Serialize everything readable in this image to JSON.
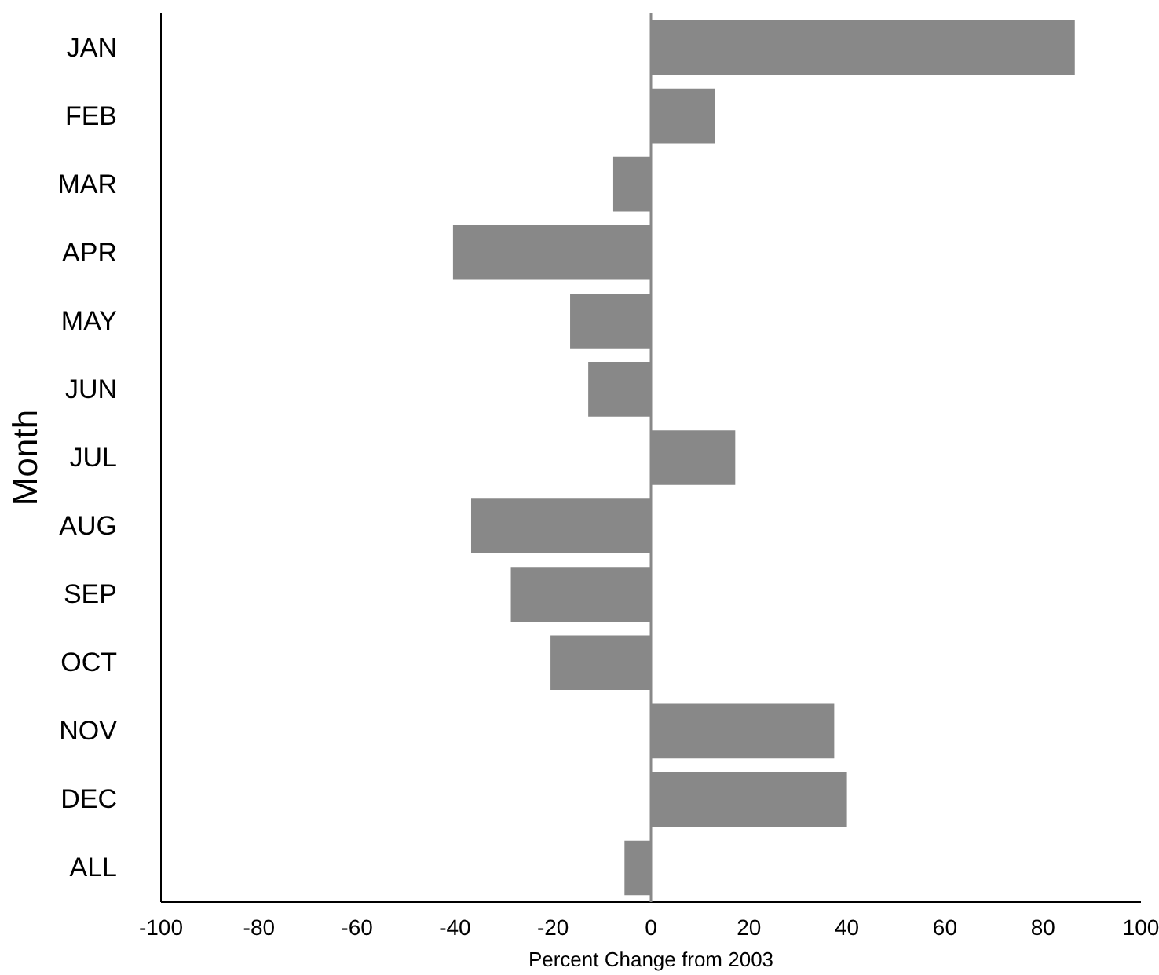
{
  "chart_data": {
    "type": "bar",
    "orientation": "horizontal",
    "xlabel": "Percent Change from 2003",
    "ylabel": "Month",
    "categories": [
      "JAN",
      "FEB",
      "MAR",
      "APR",
      "MAY",
      "JUN",
      "JUL",
      "AUG",
      "SEP",
      "OCT",
      "NOV",
      "DEC",
      "ALL"
    ],
    "values": [
      86.5,
      13,
      -7.7,
      -40.4,
      -16.5,
      -12.8,
      17.2,
      -36.7,
      -28.6,
      -20.5,
      37.4,
      40,
      -5.4
    ],
    "color": "#888888",
    "xlim": [
      -100,
      100
    ],
    "xticks": [
      -100,
      -80,
      -60,
      -40,
      -20,
      0,
      20,
      40,
      60,
      80,
      100
    ],
    "ref_lines": [
      {
        "axis": "x",
        "value": 0,
        "color": "#888888"
      }
    ],
    "grid": false
  }
}
